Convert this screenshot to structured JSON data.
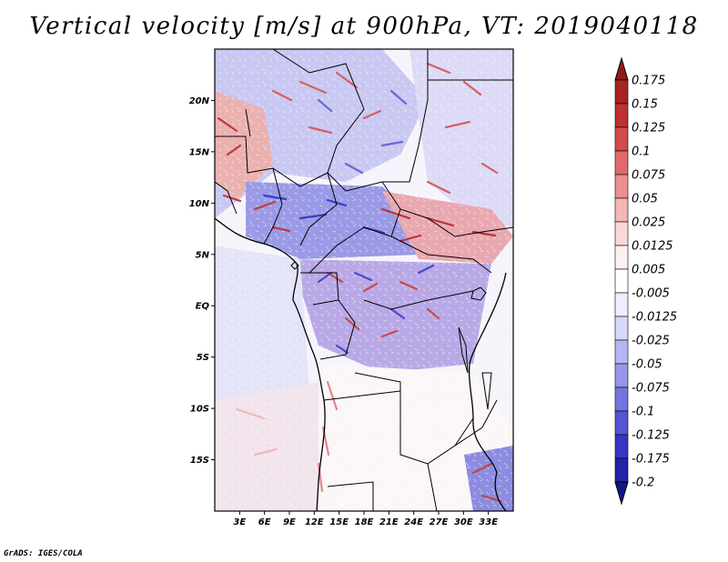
{
  "title": "Vertical velocity [m/s] at 900hPa, VT: 2019040118",
  "credit": "GrADS: IGES/COLA",
  "map": {
    "lon_range": [
      0,
      36
    ],
    "lat_range": [
      -20,
      25
    ],
    "lat_ticks": [
      {
        "value": 20,
        "label": "20N"
      },
      {
        "value": 15,
        "label": "15N"
      },
      {
        "value": 10,
        "label": "10N"
      },
      {
        "value": 5,
        "label": "5N"
      },
      {
        "value": 0,
        "label": "EQ"
      },
      {
        "value": -5,
        "label": "5S"
      },
      {
        "value": -10,
        "label": "10S"
      },
      {
        "value": -15,
        "label": "15S"
      }
    ],
    "lon_ticks": [
      {
        "value": 3,
        "label": "3E"
      },
      {
        "value": 6,
        "label": "6E"
      },
      {
        "value": 9,
        "label": "9E"
      },
      {
        "value": 12,
        "label": "12E"
      },
      {
        "value": 15,
        "label": "15E"
      },
      {
        "value": 18,
        "label": "18E"
      },
      {
        "value": 21,
        "label": "21E"
      },
      {
        "value": 24,
        "label": "24E"
      },
      {
        "value": 27,
        "label": "27E"
      },
      {
        "value": 30,
        "label": "30E"
      },
      {
        "value": 33,
        "label": "33E"
      }
    ]
  },
  "colorbar": {
    "levels": [
      "0.175",
      "0.15",
      "0.125",
      "0.1",
      "0.075",
      "0.05",
      "0.025",
      "0.0125",
      "0.005",
      "-0.005",
      "-0.0125",
      "-0.025",
      "-0.05",
      "-0.075",
      "-0.1",
      "-0.125",
      "-0.175",
      "-0.2"
    ],
    "colors": [
      "#8c1a1a",
      "#a82222",
      "#bf3030",
      "#d24a4a",
      "#e06a6a",
      "#ec9090",
      "#f5b6b6",
      "#fbd8d8",
      "#fdf0f0",
      "#ffffff",
      "#eeeeff",
      "#d8d8fb",
      "#b6b6f3",
      "#9696ea",
      "#7474e0",
      "#5454d4",
      "#3636c4",
      "#2222aa",
      "#14148a"
    ]
  }
}
